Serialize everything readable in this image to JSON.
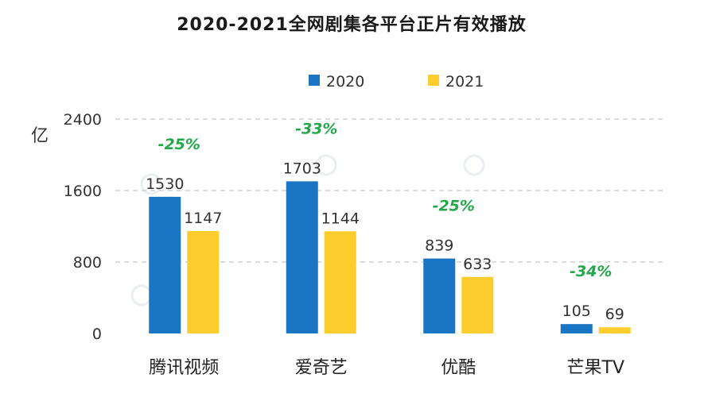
{
  "chart_data": {
    "type": "bar",
    "title": "2020-2021全网剧集各平台正片有效播放",
    "ylabel": "亿",
    "ylim": [
      0,
      2400
    ],
    "yticks": [
      0,
      800,
      1600,
      2400
    ],
    "grid": true,
    "legend_position": "top",
    "categories": [
      "腾讯视频",
      "爱奇艺",
      "优酷",
      "芒果TV"
    ],
    "series": [
      {
        "name": "2020",
        "color": "#1a75c4",
        "values": [
          1530,
          1703,
          839,
          105
        ]
      },
      {
        "name": "2021",
        "color": "#fdcd2d",
        "values": [
          1147,
          1144,
          633,
          69
        ]
      }
    ],
    "annotations": [
      "-25%",
      "-33%",
      "-25%",
      "-34%"
    ],
    "annotation_color": "#22a84a"
  }
}
